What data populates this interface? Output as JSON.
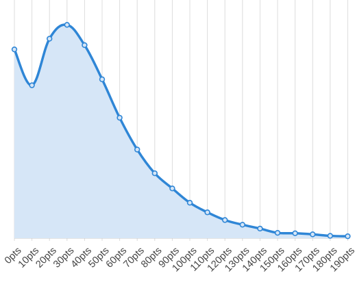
{
  "chart_data": {
    "type": "area",
    "title": "",
    "xlabel": "",
    "ylabel": "",
    "categories": [
      "0pts",
      "10pts",
      "20pts",
      "30pts",
      "40pts",
      "50pts",
      "60pts",
      "70pts",
      "80pts",
      "90pts",
      "100pts",
      "110pts",
      "120pts",
      "130pts",
      "140pts",
      "150pts",
      "160pts",
      "170pts",
      "180pts",
      "190pts"
    ],
    "series": [
      {
        "values": [
          88.5,
          71.7,
          93.5,
          100,
          90.5,
          74.5,
          56.5,
          41.6,
          30.5,
          23.4,
          16.7,
          12.2,
          8.6,
          6.4,
          4.6,
          2.6,
          2.4,
          1.9,
          1.2,
          1.0
        ]
      }
    ],
    "ylim": [
      0,
      100
    ],
    "grid": "vertical",
    "legend": "none",
    "colors": {
      "line": "#2f86d6",
      "area": "#d6e6f7",
      "grid": "#dcdcdc",
      "text": "#444444"
    }
  }
}
